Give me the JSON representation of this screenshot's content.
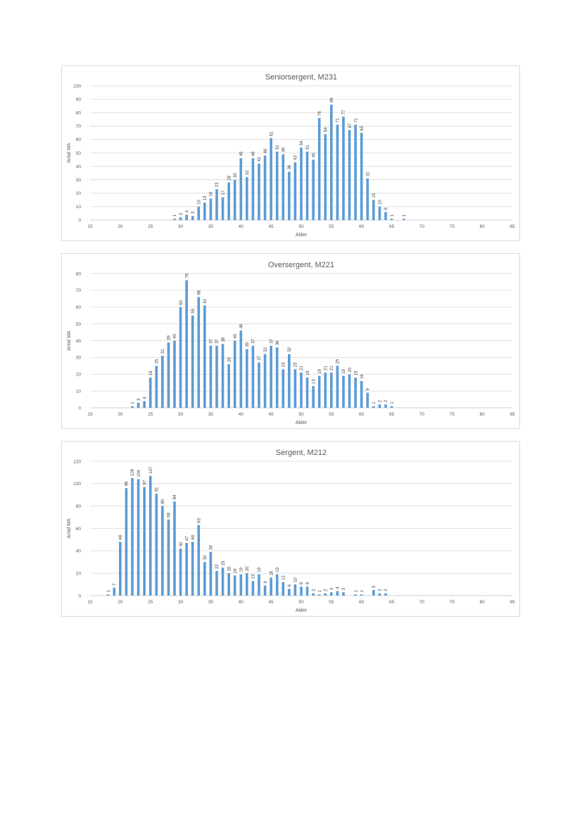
{
  "chart_data": [
    {
      "type": "bar",
      "title": "Seniorsergent, M231",
      "xlabel": "Alder",
      "ylabel": "Antal MA",
      "xlim": [
        15,
        85
      ],
      "ylim": [
        0,
        100
      ],
      "xticks": [
        15,
        20,
        25,
        30,
        35,
        40,
        45,
        50,
        55,
        60,
        65,
        70,
        75,
        80,
        85
      ],
      "yticks": [
        0,
        10,
        20,
        30,
        40,
        50,
        60,
        70,
        80,
        90,
        100
      ],
      "color": "#5b9bd5",
      "x": [
        29,
        30,
        31,
        32,
        33,
        34,
        35,
        36,
        37,
        38,
        39,
        40,
        41,
        42,
        43,
        44,
        45,
        46,
        47,
        48,
        49,
        50,
        51,
        52,
        53,
        54,
        55,
        56,
        57,
        58,
        59,
        60,
        61,
        62,
        63,
        64,
        65,
        67
      ],
      "values": [
        1,
        2,
        4,
        3,
        10,
        13,
        16,
        23,
        17,
        28,
        30,
        46,
        32,
        46,
        42,
        48,
        61,
        51,
        49,
        36,
        43,
        54,
        51,
        45,
        76,
        64,
        86,
        71,
        77,
        67,
        71,
        65,
        31,
        15,
        10,
        6,
        1,
        1
      ],
      "bar_labels": [
        "1",
        "2",
        "4",
        "3",
        "10",
        "13",
        "16",
        "23",
        "17",
        "28",
        "30",
        "46",
        "32",
        "46",
        "42",
        "48",
        "61",
        "51",
        "49",
        "36",
        "43",
        "54",
        "51",
        "45",
        "76",
        "64",
        "86",
        "71",
        "77",
        "67",
        "71",
        "65",
        "31",
        "15",
        "10",
        "6",
        "1",
        "1"
      ]
    },
    {
      "type": "bar",
      "title": "Oversergent, M221",
      "xlabel": "Alder",
      "ylabel": "Antal MA",
      "xlim": [
        15,
        85
      ],
      "ylim": [
        0,
        80
      ],
      "xticks": [
        15,
        20,
        25,
        30,
        35,
        40,
        45,
        50,
        55,
        60,
        65,
        70,
        75,
        80,
        85
      ],
      "yticks": [
        0,
        10,
        20,
        30,
        40,
        50,
        60,
        70,
        80
      ],
      "color": "#5b9bd5",
      "x": [
        22,
        23,
        24,
        25,
        26,
        27,
        28,
        29,
        30,
        31,
        32,
        33,
        34,
        35,
        36,
        37,
        38,
        39,
        40,
        41,
        42,
        43,
        44,
        45,
        46,
        47,
        48,
        49,
        50,
        51,
        52,
        53,
        54,
        55,
        56,
        57,
        58,
        59,
        60,
        61,
        62,
        63,
        64,
        65
      ],
      "values": [
        1,
        3,
        4,
        18,
        25,
        31,
        39,
        40,
        60,
        76,
        55,
        66,
        61,
        37,
        37,
        38,
        26,
        40,
        46,
        35,
        37,
        27,
        32,
        37,
        36,
        23,
        32,
        23,
        21,
        18,
        13,
        19,
        21,
        21,
        25,
        19,
        20,
        18,
        16,
        9,
        1,
        2,
        2,
        1
      ],
      "bar_labels": [
        "1",
        "3",
        "4",
        "18",
        "25",
        "31",
        "39",
        "40",
        "60",
        "76",
        "55",
        "66",
        "61",
        "37",
        "37",
        "38",
        "26",
        "40",
        "46",
        "35",
        "37",
        "27",
        "32",
        "37",
        "36",
        "23",
        "32",
        "23",
        "21",
        "18",
        "13",
        "19",
        "21",
        "21",
        "25",
        "19",
        "20",
        "18",
        "16",
        "9",
        "1",
        "2",
        "2",
        "1"
      ]
    },
    {
      "type": "bar",
      "title": "Sergent, M212",
      "xlabel": "Alder",
      "ylabel": "Antal MA",
      "xlim": [
        15,
        85
      ],
      "ylim": [
        0,
        120
      ],
      "xticks": [
        15,
        20,
        25,
        30,
        35,
        40,
        45,
        50,
        55,
        60,
        65,
        70,
        75,
        80,
        85
      ],
      "yticks": [
        0,
        20,
        40,
        60,
        80,
        100,
        120
      ],
      "color": "#5b9bd5",
      "x": [
        18,
        19,
        20,
        21,
        22,
        23,
        24,
        25,
        26,
        27,
        28,
        29,
        30,
        31,
        32,
        33,
        34,
        35,
        36,
        37,
        38,
        39,
        40,
        41,
        42,
        43,
        44,
        45,
        46,
        47,
        48,
        49,
        50,
        51,
        52,
        53,
        54,
        55,
        56,
        57,
        59,
        60,
        62,
        63,
        64
      ],
      "values": [
        1,
        7,
        48,
        96,
        105,
        104,
        97,
        107,
        91,
        80,
        68,
        84,
        42,
        47,
        48,
        63,
        30,
        39,
        22,
        25,
        20,
        18,
        19,
        20,
        13,
        19,
        9,
        16,
        19,
        12,
        6,
        10,
        8,
        8,
        2,
        1,
        2,
        3,
        4,
        3,
        1,
        1,
        5,
        2,
        2
      ],
      "bar_labels": [
        "1",
        "7",
        "48",
        "96",
        "105",
        "104",
        "97",
        "107",
        "91",
        "80",
        "68",
        "84",
        "42",
        "47",
        "48",
        "63",
        "30",
        "39",
        "22",
        "25",
        "20",
        "18",
        "19",
        "20",
        "13",
        "19",
        "9",
        "16",
        "19",
        "12",
        "6",
        "10",
        "8",
        "8",
        "2",
        "1",
        "2",
        "3",
        "4",
        "3",
        "1",
        "1",
        "5",
        "2",
        "2"
      ]
    }
  ]
}
